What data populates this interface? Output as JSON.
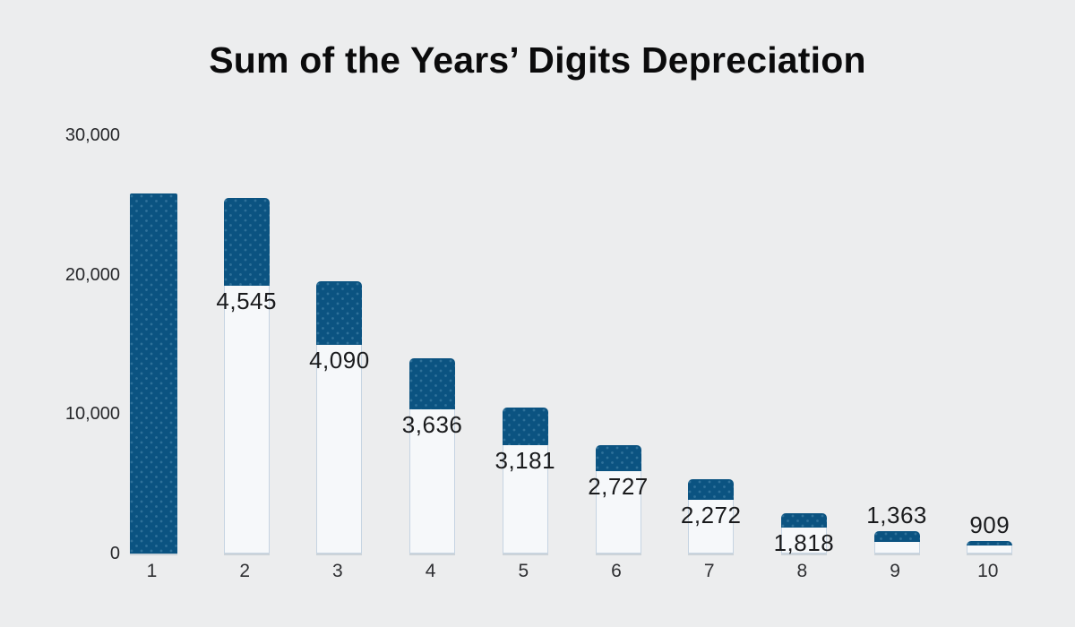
{
  "title": "Sum of the Years’ Digits Depreciation",
  "colors": {
    "background": "#ecedee",
    "bar_dark_blue": "#0b5381",
    "bar_light_fill": "#f6f8fa",
    "bar_light_border": "#c6d4e2",
    "title_text": "#0b0b0c",
    "value_label_text": "#1a1b1d",
    "axis_label_text": "#27282b"
  },
  "chart_data": {
    "type": "bar",
    "subtype": "waterfall-depreciation-schedule",
    "title": "Sum of the Years’ Digits Depreciation",
    "xlabel": "",
    "ylabel": "",
    "ylim": [
      0,
      30000
    ],
    "grid": false,
    "legend": false,
    "categories": [
      "1",
      "2",
      "3",
      "4",
      "5",
      "6",
      "7",
      "8",
      "9",
      "10"
    ],
    "y_ticks": [
      {
        "value": 30000,
        "label": "30,000"
      },
      {
        "value": 20000,
        "label": "20,000"
      },
      {
        "value": 10000,
        "label": "10,000"
      },
      {
        "value": 0,
        "label": "0"
      }
    ],
    "bars": [
      {
        "year": "1",
        "top_value": 25900,
        "dark_bottom_value": 0,
        "label": null,
        "label_position": "none"
      },
      {
        "year": "2",
        "top_value": 25600,
        "dark_bottom_value": 19300,
        "label": "4,545",
        "label_position": "below-dark-segment"
      },
      {
        "year": "3",
        "top_value": 19620,
        "dark_bottom_value": 15000,
        "label": "4,090",
        "label_position": "below-dark-segment"
      },
      {
        "year": "4",
        "top_value": 14090,
        "dark_bottom_value": 10420,
        "label": "3,636",
        "label_position": "below-dark-segment"
      },
      {
        "year": "5",
        "top_value": 10550,
        "dark_bottom_value": 7850,
        "label": "3,181",
        "label_position": "below-dark-segment"
      },
      {
        "year": "6",
        "top_value": 7850,
        "dark_bottom_value": 5980,
        "label": "2,727",
        "label_position": "below-dark-segment"
      },
      {
        "year": "7",
        "top_value": 5370,
        "dark_bottom_value": 3900,
        "label": "2,272",
        "label_position": "below-dark-segment"
      },
      {
        "year": "8",
        "top_value": 2960,
        "dark_bottom_value": 1930,
        "label": "1,818",
        "label_position": "below-dark-segment"
      },
      {
        "year": "9",
        "top_value": 1670,
        "dark_bottom_value": 900,
        "label": "1,363",
        "label_position": "above-bar"
      },
      {
        "year": "10",
        "top_value": 965,
        "dark_bottom_value": 580,
        "label": "909",
        "label_position": "above-bar"
      }
    ]
  }
}
